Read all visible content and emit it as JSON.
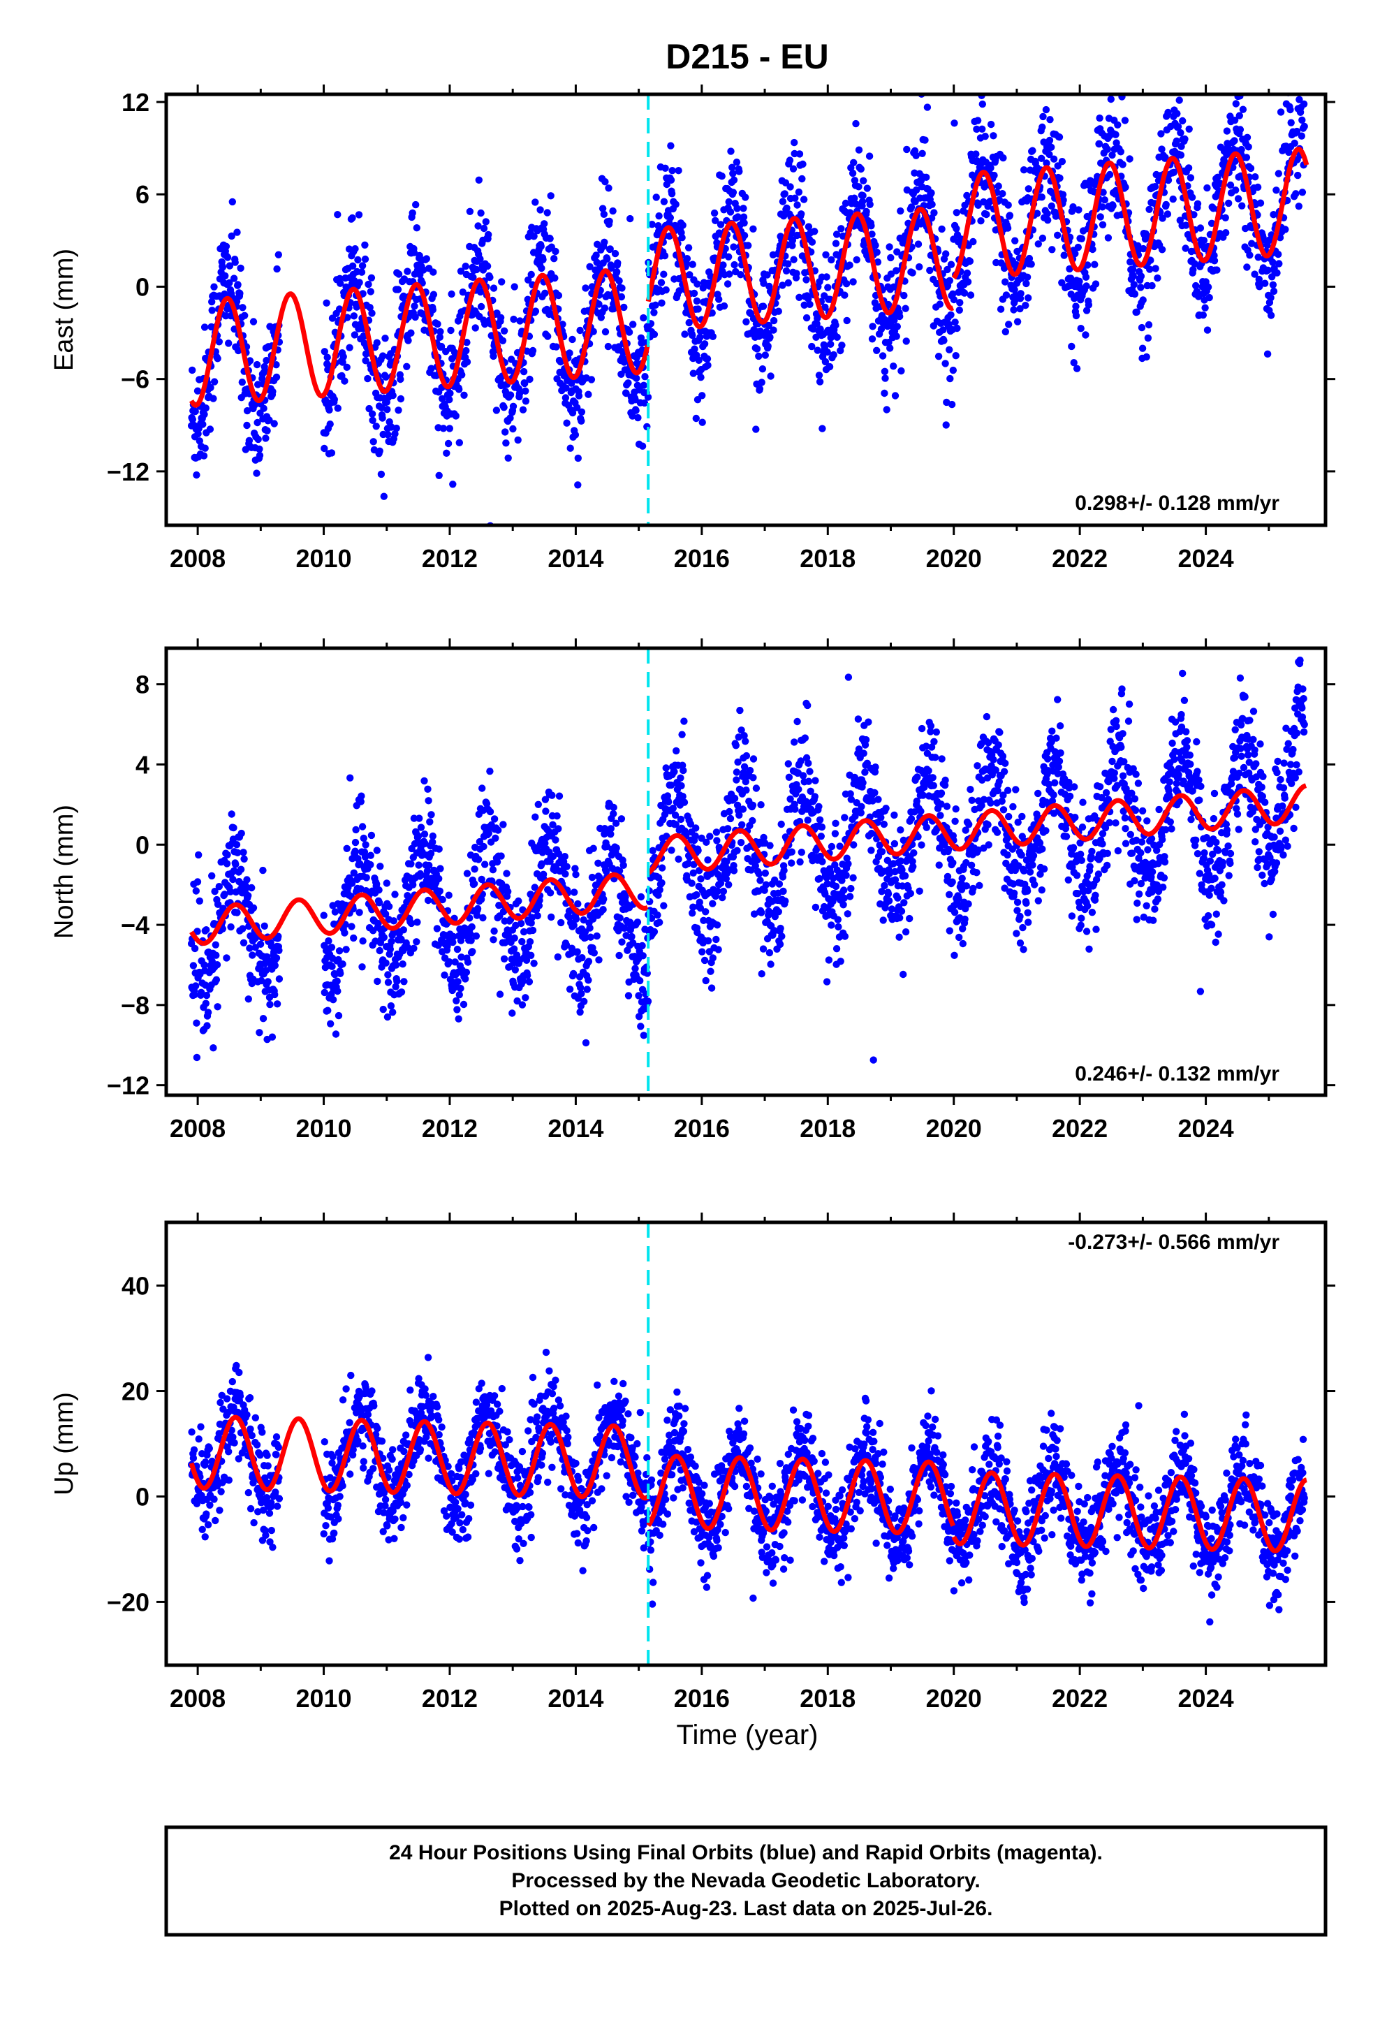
{
  "chart_data": {
    "type": "scatter",
    "title": "D215 - EU",
    "xlabel": "Time (year)",
    "x_ticks": [
      2008,
      2010,
      2012,
      2014,
      2016,
      2018,
      2020,
      2022,
      2024
    ],
    "xlim": [
      2007.5,
      2025.9
    ],
    "event_line_x": 2015.15,
    "series_colors": {
      "data": "#0000ff",
      "model": "#ff0000",
      "event": "#00e5ee"
    },
    "panels": [
      {
        "key": "east",
        "ylabel": "East (mm)",
        "ylim": [
          -15.5,
          12.5
        ],
        "y_ticks": [
          12,
          6,
          0,
          -6,
          -12
        ],
        "y_tick_labels": [
          "12",
          "6",
          "0",
          "−6",
          "−12"
        ],
        "rate": "0.298+/- 0.128 mm/yr",
        "model": {
          "segments": [
            {
              "x0": 2007.9,
              "x1": 2015.15,
              "offset": -2.2,
              "trend": 0.3,
              "amp": 3.4,
              "phase": 0.22
            },
            {
              "x0": 2015.15,
              "x1": 2020.0,
              "offset": 0.4,
              "trend": 0.3,
              "amp": 3.3,
              "phase": 0.22
            },
            {
              "x0": 2020.0,
              "x1": 2025.6,
              "offset": 2.4,
              "trend": 0.3,
              "amp": 3.4,
              "phase": 0.22
            }
          ]
        },
        "scatter": {
          "spread": 2.2,
          "amp_scale": 1.3
        }
      },
      {
        "key": "north",
        "ylabel": "North (mm)",
        "ylim": [
          -12.5,
          9.8
        ],
        "y_ticks": [
          8,
          4,
          0,
          -4,
          -8,
          -12
        ],
        "y_tick_labels": [
          "8",
          "4",
          "0",
          "−4",
          "−8",
          "−12"
        ],
        "rate": "0.246+/- 0.132 mm/yr",
        "model": {
          "segments": [
            {
              "x0": 2007.9,
              "x1": 2015.15,
              "offset": -2.3,
              "trend": 0.25,
              "amp": 0.9,
              "phase": 0.35
            },
            {
              "x0": 2015.15,
              "x1": 2025.6,
              "offset": -0.6,
              "trend": 0.25,
              "amp": 0.9,
              "phase": 0.35
            }
          ]
        },
        "scatter": {
          "spread": 1.6,
          "amp_scale": 3.2
        }
      },
      {
        "key": "up",
        "ylabel": "Up (mm)",
        "ylim": [
          -32,
          52
        ],
        "y_ticks": [
          40,
          20,
          0,
          -20
        ],
        "y_tick_labels": [
          "40",
          "20",
          "0",
          "−20"
        ],
        "rate": "-0.273+/- 0.566 mm/yr",
        "model": {
          "segments": [
            {
              "x0": 2007.9,
              "x1": 2015.15,
              "offset": 6.5,
              "trend": -0.27,
              "amp": 6.8,
              "phase": 0.35
            },
            {
              "x0": 2015.15,
              "x1": 2020.0,
              "offset": 1.0,
              "trend": -0.27,
              "amp": 6.8,
              "phase": 0.35
            },
            {
              "x0": 2020.0,
              "x1": 2025.6,
              "offset": -0.8,
              "trend": -0.27,
              "amp": 6.8,
              "phase": 0.35
            }
          ]
        },
        "scatter": {
          "spread": 4.5,
          "amp_scale": 1.2
        }
      }
    ]
  },
  "footer": {
    "line1": "24 Hour Positions Using Final Orbits (blue) and Rapid Orbits (magenta).",
    "line2": "Processed by the Nevada Geodetic Laboratory.",
    "line3": "Plotted on 2025-Aug-23. Last data on 2025-Jul-26."
  }
}
